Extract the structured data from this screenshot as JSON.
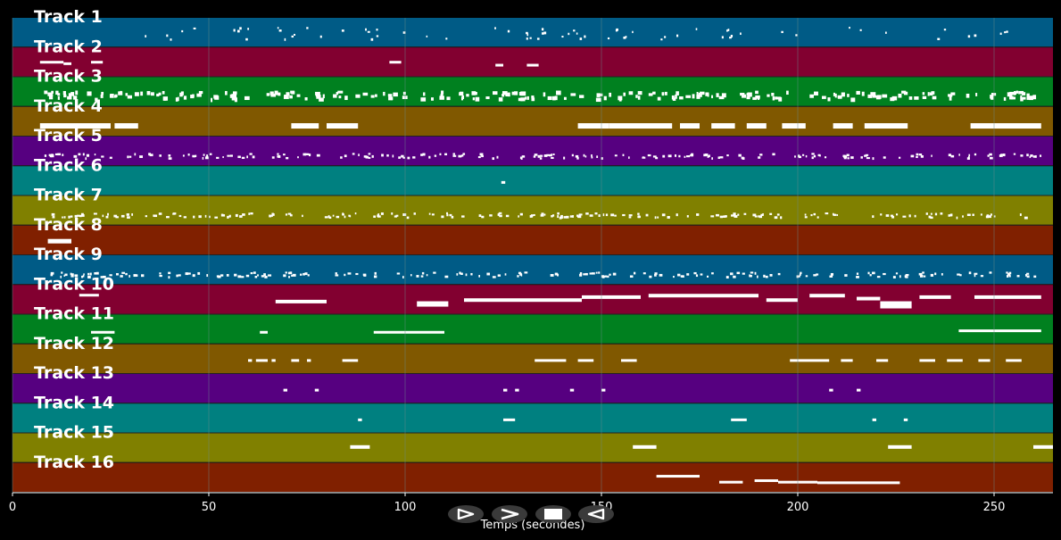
{
  "plot": {
    "xlabel": "Temps (secondes)",
    "xlim": [
      0,
      265
    ],
    "xticks": [
      0,
      50,
      100,
      150,
      200,
      250
    ],
    "background": "#000000",
    "grid_color": "#6b8a8a"
  },
  "tracks": [
    {
      "name": "Track 1",
      "color": "#005b86",
      "density": "sparse-top"
    },
    {
      "name": "Track 2",
      "color": "#820030",
      "density": "few"
    },
    {
      "name": "Track 3",
      "color": "#00801f",
      "density": "dense"
    },
    {
      "name": "Track 4",
      "color": "#805800",
      "density": "blocks"
    },
    {
      "name": "Track 5",
      "color": "#560080",
      "density": "dense-thin"
    },
    {
      "name": "Track 6",
      "color": "#008080",
      "density": "single"
    },
    {
      "name": "Track 7",
      "color": "#808000",
      "density": "dense-thin"
    },
    {
      "name": "Track 8",
      "color": "#802000",
      "density": "single"
    },
    {
      "name": "Track 9",
      "color": "#005b86",
      "density": "dense-thin"
    },
    {
      "name": "Track 10",
      "color": "#820030",
      "density": "melody"
    },
    {
      "name": "Track 11",
      "color": "#00801f",
      "density": "few"
    },
    {
      "name": "Track 12",
      "color": "#805800",
      "density": "clusters"
    },
    {
      "name": "Track 13",
      "color": "#560080",
      "density": "sparse"
    },
    {
      "name": "Track 14",
      "color": "#008080",
      "density": "sparse"
    },
    {
      "name": "Track 15",
      "color": "#808000",
      "density": "few"
    },
    {
      "name": "Track 16",
      "color": "#802000",
      "density": "segment"
    }
  ],
  "controls": [
    {
      "name": "play-button",
      "icon": "play-icon"
    },
    {
      "name": "fast-forward-button",
      "icon": "fast-forward-icon"
    },
    {
      "name": "stop-button",
      "icon": "stop-icon"
    },
    {
      "name": "rewind-button",
      "icon": "rewind-icon"
    }
  ]
}
